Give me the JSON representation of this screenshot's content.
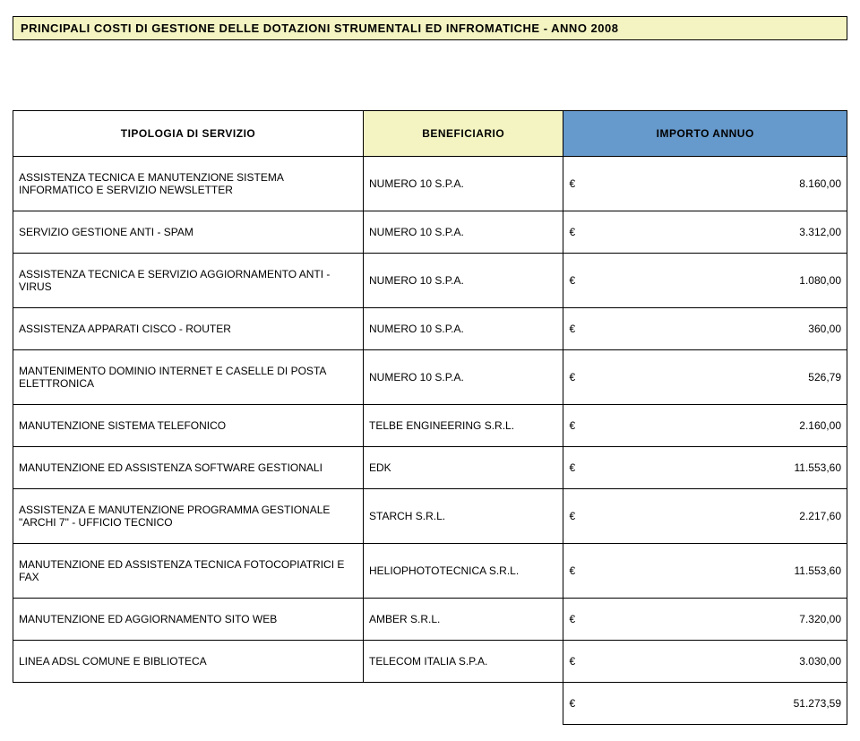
{
  "title": "PRINCIPALI COSTI DI GESTIONE DELLE DOTAZIONI STRUMENTALI ED INFROMATICHE - ANNO 2008",
  "headers": {
    "service": "TIPOLOGIA DI SERVIZIO",
    "beneficiary": "BENEFICIARIO",
    "amount": "IMPORTO ANNUO"
  },
  "currency_symbol": "€",
  "rows": [
    {
      "service": "ASSISTENZA TECNICA E MANUTENZIONE SISTEMA INFORMATICO E SERVIZIO NEWSLETTER",
      "beneficiary": "NUMERO 10 S.P.A.",
      "amount": "8.160,00"
    },
    {
      "service": "SERVIZIO GESTIONE ANTI - SPAM",
      "beneficiary": "NUMERO 10 S.P.A.",
      "amount": "3.312,00"
    },
    {
      "service": "ASSISTENZA TECNICA E SERVIZIO AGGIORNAMENTO  ANTI - VIRUS",
      "beneficiary": "NUMERO 10 S.P.A.",
      "amount": "1.080,00"
    },
    {
      "service": "ASSISTENZA APPARATI CISCO - ROUTER",
      "beneficiary": "NUMERO 10 S.P.A.",
      "amount": "360,00"
    },
    {
      "service": "MANTENIMENTO DOMINIO INTERNET E CASELLE DI POSTA ELETTRONICA",
      "beneficiary": "NUMERO 10 S.P.A.",
      "amount": "526,79"
    },
    {
      "service": "MANUTENZIONE SISTEMA TELEFONICO",
      "beneficiary": "TELBE ENGINEERING S.R.L.",
      "amount": "2.160,00"
    },
    {
      "service": "MANUTENZIONE ED ASSISTENZA SOFTWARE  GESTIONALI",
      "beneficiary": "EDK",
      "amount": "11.553,60"
    },
    {
      "service": "ASSISTENZA E MANUTENZIONE PROGRAMMA GESTIONALE \"ARCHI 7\" - UFFICIO TECNICO",
      "beneficiary": "STARCH S.R.L.",
      "amount": "2.217,60"
    },
    {
      "service": "MANUTENZIONE ED ASSISTENZA TECNICA FOTOCOPIATRICI E FAX",
      "beneficiary": "HELIOPHOTOTECNICA S.R.L.",
      "amount": "11.553,60"
    },
    {
      "service": "MANUTENZIONE ED AGGIORNAMENTO SITO WEB",
      "beneficiary": "AMBER S.R.L.",
      "amount": "7.320,00"
    },
    {
      "service": "LINEA ADSL COMUNE E BIBLIOTECA",
      "beneficiary": "TELECOM ITALIA S.P.A.",
      "amount": "3.030,00"
    }
  ],
  "total": "51.273,59",
  "colors": {
    "title_bg": "#f4f4c2",
    "ben_header_bg": "#f4f4c2",
    "amt_header_bg": "#6699cc",
    "border": "#000000",
    "page_bg": "#ffffff"
  }
}
